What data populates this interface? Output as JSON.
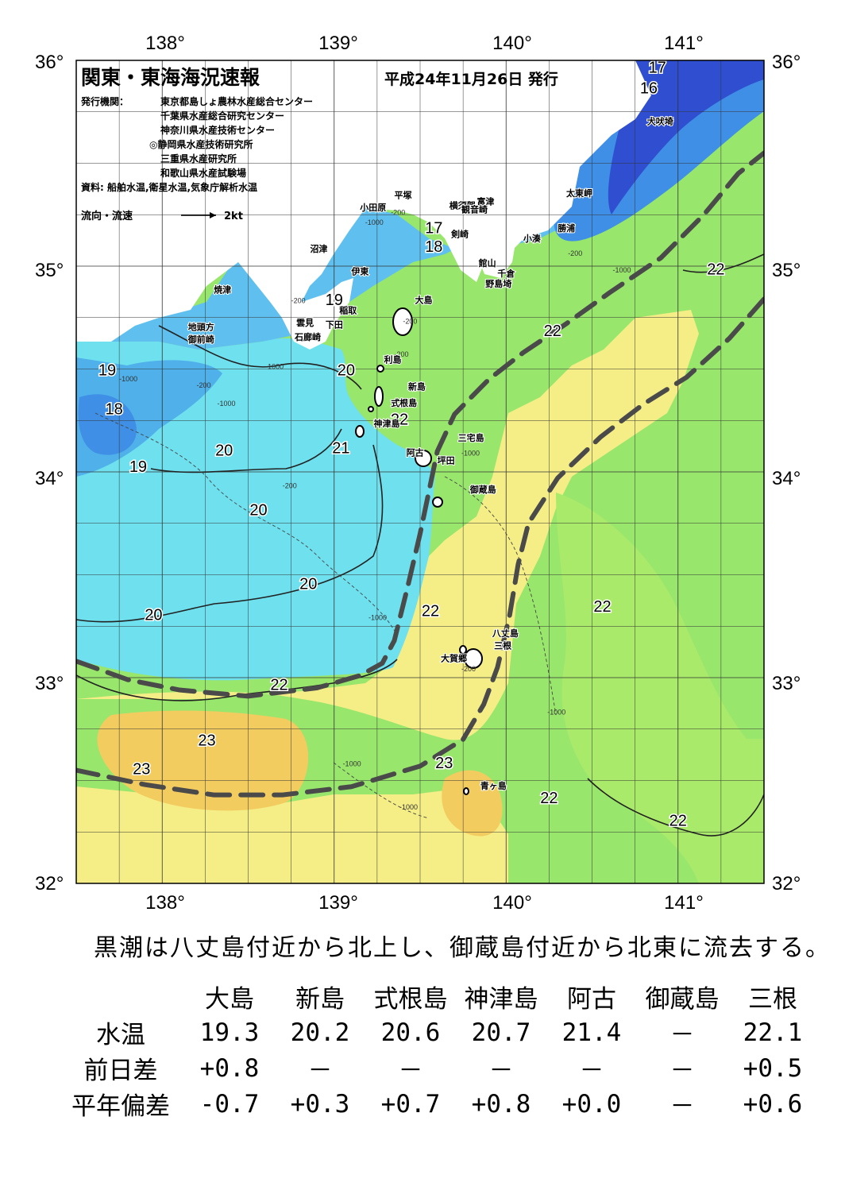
{
  "map": {
    "title": "関東・東海海況速報",
    "issue_date": "平成24年11月26日 発行",
    "issuer_label": "発行機関：",
    "issuers": [
      "東京都島しょ農林水産総合センター",
      "千葉県水産総合研究センター",
      "神奈川県水産技術センター",
      "◎静岡県水産技術研究所",
      "三重県水産研究所",
      "和歌山県水産試験場"
    ],
    "source": "資料: 船舶水温,衛星水温,気象庁解析水温",
    "legend_label": "流向・流速",
    "legend_value": "2kt",
    "lon_labels": [
      "138°",
      "139°",
      "140°",
      "141°"
    ],
    "lat_labels": [
      "36°",
      "35°",
      "34°",
      "33°",
      "32°"
    ],
    "lon_range": [
      137.5,
      141.5
    ],
    "lat_range": [
      32,
      36
    ],
    "places": [
      {
        "name": "犬吠埼",
        "lon": 140.82,
        "lat": 35.69
      },
      {
        "name": "太東岬",
        "lon": 140.35,
        "lat": 35.34
      },
      {
        "name": "勝浦",
        "lon": 140.3,
        "lat": 35.17
      },
      {
        "name": "小湊",
        "lon": 140.1,
        "lat": 35.12
      },
      {
        "name": "富津",
        "lon": 139.83,
        "lat": 35.3
      },
      {
        "name": "館山",
        "lon": 139.84,
        "lat": 35.0
      },
      {
        "name": "千倉",
        "lon": 139.95,
        "lat": 34.95
      },
      {
        "name": "野島埼",
        "lon": 139.88,
        "lat": 34.9
      },
      {
        "name": "横須賀",
        "lon": 139.67,
        "lat": 35.28
      },
      {
        "name": "観音崎",
        "lon": 139.74,
        "lat": 35.26
      },
      {
        "name": "剣崎",
        "lon": 139.68,
        "lat": 35.14
      },
      {
        "name": "平塚",
        "lon": 139.35,
        "lat": 35.33
      },
      {
        "name": "小田原",
        "lon": 139.15,
        "lat": 35.27
      },
      {
        "name": "沼津",
        "lon": 138.86,
        "lat": 35.07
      },
      {
        "name": "伊東",
        "lon": 139.1,
        "lat": 34.96
      },
      {
        "name": "焼津",
        "lon": 138.3,
        "lat": 34.87
      },
      {
        "name": "稲取",
        "lon": 139.03,
        "lat": 34.77
      },
      {
        "name": "下田",
        "lon": 138.95,
        "lat": 34.7
      },
      {
        "name": "雲見",
        "lon": 138.78,
        "lat": 34.71
      },
      {
        "name": "石廊崎",
        "lon": 138.77,
        "lat": 34.64
      },
      {
        "name": "地頭方",
        "lon": 138.15,
        "lat": 34.69
      },
      {
        "name": "御前崎",
        "lon": 138.15,
        "lat": 34.63
      },
      {
        "name": "大島",
        "lon": 139.47,
        "lat": 34.82
      },
      {
        "name": "利島",
        "lon": 139.29,
        "lat": 34.53
      },
      {
        "name": "新島",
        "lon": 139.43,
        "lat": 34.4
      },
      {
        "name": "式根島",
        "lon": 139.33,
        "lat": 34.32
      },
      {
        "name": "神津島",
        "lon": 139.23,
        "lat": 34.22
      },
      {
        "name": "三宅島",
        "lon": 139.72,
        "lat": 34.15
      },
      {
        "name": "阿古",
        "lon": 139.42,
        "lat": 34.08
      },
      {
        "name": "坪田",
        "lon": 139.6,
        "lat": 34.04
      },
      {
        "name": "御蔵島",
        "lon": 139.79,
        "lat": 33.9
      },
      {
        "name": "八丈島",
        "lon": 139.92,
        "lat": 33.2
      },
      {
        "name": "三根",
        "lon": 139.93,
        "lat": 33.14
      },
      {
        "name": "大賀郷",
        "lon": 139.62,
        "lat": 33.08
      },
      {
        "name": "青ヶ島",
        "lon": 139.85,
        "lat": 32.46
      }
    ],
    "isotherm_labels": [
      {
        "text": "17",
        "lon": 140.88,
        "lat": 35.94
      },
      {
        "text": "16",
        "lon": 140.83,
        "lat": 35.84
      },
      {
        "text": "17",
        "lon": 139.58,
        "lat": 35.16
      },
      {
        "text": "18",
        "lon": 139.58,
        "lat": 35.07
      },
      {
        "text": "19",
        "lon": 139.0,
        "lat": 34.81
      },
      {
        "text": "19",
        "lon": 137.68,
        "lat": 34.47
      },
      {
        "text": "18",
        "lon": 137.72,
        "lat": 34.28
      },
      {
        "text": "20",
        "lon": 139.07,
        "lat": 34.47
      },
      {
        "text": "20",
        "lon": 138.36,
        "lat": 34.08
      },
      {
        "text": "19",
        "lon": 137.86,
        "lat": 34.0
      },
      {
        "text": "21",
        "lon": 139.04,
        "lat": 34.09
      },
      {
        "text": "22",
        "lon": 139.38,
        "lat": 34.23
      },
      {
        "text": "20",
        "lon": 138.56,
        "lat": 33.79
      },
      {
        "text": "20",
        "lon": 138.85,
        "lat": 33.43
      },
      {
        "text": "20",
        "lon": 137.95,
        "lat": 33.28
      },
      {
        "text": "22",
        "lon": 139.56,
        "lat": 33.3
      },
      {
        "text": "22",
        "lon": 140.56,
        "lat": 33.32
      },
      {
        "text": "22",
        "lon": 138.68,
        "lat": 32.94
      },
      {
        "text": "23",
        "lon": 138.26,
        "lat": 32.67
      },
      {
        "text": "23",
        "lon": 137.88,
        "lat": 32.53
      },
      {
        "text": "23",
        "lon": 139.64,
        "lat": 32.56
      },
      {
        "text": "22",
        "lon": 140.25,
        "lat": 32.39
      },
      {
        "text": "22",
        "lon": 141.0,
        "lat": 32.28
      },
      {
        "text": "22",
        "lon": 140.27,
        "lat": 34.66
      },
      {
        "text": "22",
        "lon": 141.22,
        "lat": 34.96
      }
    ],
    "depth_labels": [
      {
        "text": "-200",
        "lon": 139.33,
        "lat": 35.25
      },
      {
        "text": "-1000",
        "lon": 139.18,
        "lat": 35.2
      },
      {
        "text": "-200",
        "lon": 140.36,
        "lat": 35.05
      },
      {
        "text": "-1000",
        "lon": 140.62,
        "lat": 34.97
      },
      {
        "text": "-200",
        "lon": 138.75,
        "lat": 34.82
      },
      {
        "text": "-1000",
        "lon": 138.6,
        "lat": 34.5
      },
      {
        "text": "-200",
        "lon": 138.2,
        "lat": 34.41
      },
      {
        "text": "-1000",
        "lon": 137.75,
        "lat": 34.44
      },
      {
        "text": "-1000",
        "lon": 138.32,
        "lat": 34.32
      },
      {
        "text": "-200",
        "lon": 138.7,
        "lat": 33.92
      },
      {
        "text": "-1000",
        "lon": 139.74,
        "lat": 34.08
      },
      {
        "text": "-1000",
        "lon": 139.2,
        "lat": 33.28
      },
      {
        "text": "-200",
        "lon": 139.4,
        "lat": 34.72
      },
      {
        "text": "-200",
        "lon": 139.35,
        "lat": 34.56
      },
      {
        "text": "-200",
        "lon": 139.74,
        "lat": 33.03
      },
      {
        "text": "-1000",
        "lon": 140.24,
        "lat": 32.82
      },
      {
        "text": "-1000",
        "lon": 139.05,
        "lat": 32.57
      },
      {
        "text": "-1000",
        "lon": 139.38,
        "lat": 32.36
      }
    ],
    "kuroshio_axes": [
      [
        [
          137.5,
          33.08
        ],
        [
          137.8,
          32.99
        ],
        [
          138.1,
          32.94
        ],
        [
          138.5,
          32.91
        ],
        [
          138.9,
          32.95
        ],
        [
          139.15,
          33.01
        ],
        [
          139.28,
          33.07
        ],
        [
          139.35,
          33.18
        ],
        [
          139.43,
          33.45
        ],
        [
          139.5,
          33.7
        ],
        [
          139.55,
          33.9
        ],
        [
          139.6,
          34.1
        ],
        [
          139.7,
          34.28
        ],
        [
          139.9,
          34.45
        ],
        [
          140.1,
          34.58
        ],
        [
          140.35,
          34.72
        ],
        [
          140.6,
          34.87
        ],
        [
          140.9,
          35.04
        ],
        [
          141.15,
          35.25
        ],
        [
          141.35,
          35.45
        ],
        [
          141.5,
          35.55
        ]
      ],
      [
        [
          137.5,
          32.55
        ],
        [
          137.9,
          32.48
        ],
        [
          138.3,
          32.43
        ],
        [
          138.7,
          32.43
        ],
        [
          139.1,
          32.47
        ],
        [
          139.5,
          32.57
        ],
        [
          139.75,
          32.7
        ],
        [
          139.87,
          32.87
        ],
        [
          139.95,
          33.05
        ],
        [
          140.02,
          33.3
        ],
        [
          140.07,
          33.55
        ],
        [
          140.13,
          33.75
        ],
        [
          140.3,
          33.97
        ],
        [
          140.55,
          34.17
        ],
        [
          140.8,
          34.33
        ],
        [
          141.05,
          34.46
        ],
        [
          141.3,
          34.65
        ],
        [
          141.5,
          34.84
        ]
      ]
    ]
  },
  "summary": "黒潮は八丈島付近から北上し、御蔵島付近から北東に流去する。",
  "obs_table": {
    "stations": [
      "大島",
      "新島",
      "式根島",
      "神津島",
      "阿古",
      "御蔵島",
      "三根"
    ],
    "rows": [
      {
        "label": "水温",
        "values": [
          "19.3",
          "20.2",
          "20.6",
          "20.7",
          "21.4",
          "－",
          "22.1"
        ]
      },
      {
        "label": "前日差",
        "values": [
          "+0.8",
          "－",
          "－",
          "－",
          "－",
          "－",
          "+0.5"
        ]
      },
      {
        "label": "平年偏差",
        "values": [
          "-0.7",
          "+0.3",
          "+0.7",
          "+0.8",
          "+0.0",
          "－",
          "+0.6"
        ]
      }
    ]
  },
  "colors": {
    "land": "#ffffff",
    "very_cold": "#2f4fd0",
    "cold": "#3f8fe6",
    "cool": "#5fc0f0",
    "mild": "#6ee0ee",
    "warm_green": "#9ee86a",
    "light_green": "#8fe06e",
    "yellow": "#f5ee86",
    "orange": "#f3cc60",
    "axis": "#444444"
  }
}
